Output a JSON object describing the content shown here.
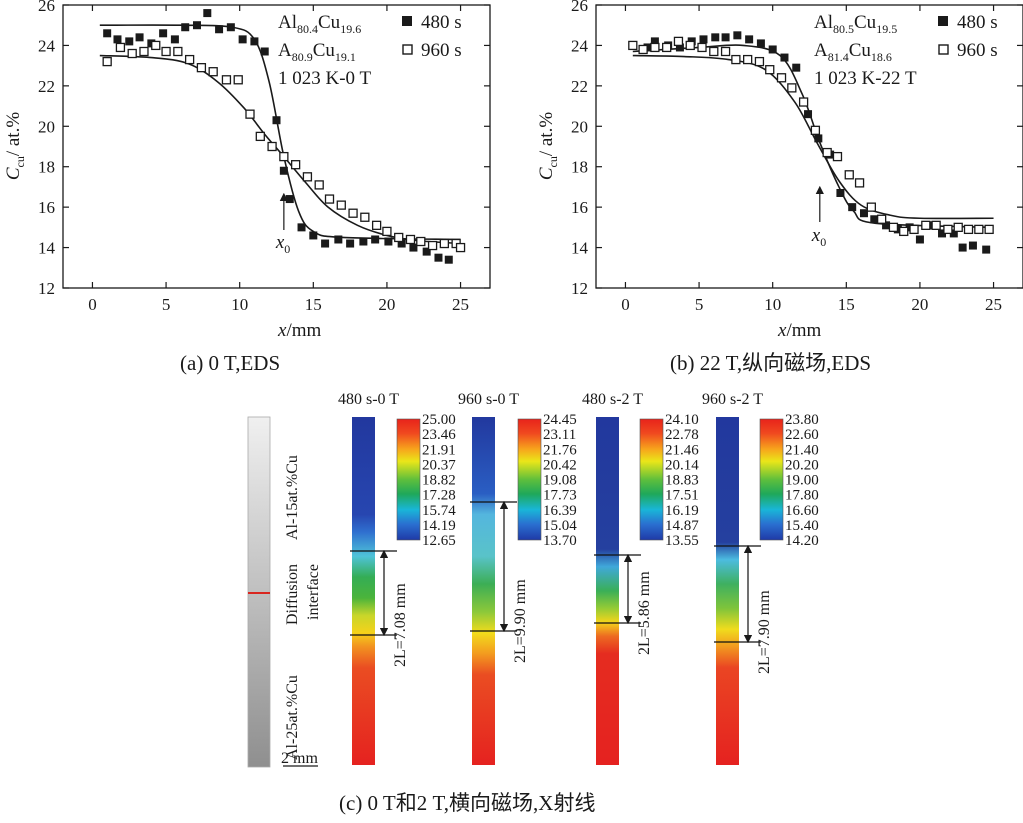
{
  "chart_data": [
    {
      "type": "scatter",
      "caption": "(a) 0 T,EDS",
      "xlabel": "x/mm",
      "ylabel": "C_cu/ at.%",
      "xlim": [
        -2,
        27
      ],
      "ylim": [
        12,
        26
      ],
      "xticks": [
        "0",
        "5",
        "10",
        "15",
        "20",
        "25"
      ],
      "yticks": [
        "12",
        "14",
        "16",
        "18",
        "20",
        "22",
        "24",
        "26"
      ],
      "legend": {
        "lines": [
          {
            "base": "Al",
            "sub1": "80.4",
            "mid": "Cu",
            "sub2": "19.6",
            "marker": "filled",
            "label": "480 s"
          },
          {
            "base": "A",
            "sub1": "80.9",
            "mid": "Cu",
            "sub2": "19.1",
            "marker": "open",
            "label": "960 s"
          }
        ],
        "condition": "1 023 K-0 T"
      },
      "annotation": {
        "base": "x",
        "sub": "0",
        "x": 13.0
      },
      "series": [
        {
          "name": "480 s",
          "marker": "filled",
          "points": [
            [
              1,
              24.6
            ],
            [
              1.7,
              24.3
            ],
            [
              2.5,
              24.2
            ],
            [
              3.2,
              24.4
            ],
            [
              4,
              24.1
            ],
            [
              4.8,
              24.6
            ],
            [
              5.6,
              24.3
            ],
            [
              6.3,
              24.9
            ],
            [
              7.1,
              25
            ],
            [
              7.8,
              25.6
            ],
            [
              8.6,
              24.8
            ],
            [
              9.4,
              24.9
            ],
            [
              10.2,
              24.3
            ],
            [
              11,
              24.2
            ],
            [
              11.7,
              23.7
            ],
            [
              12.5,
              20.3
            ],
            [
              13.0,
              17.8
            ],
            [
              13.4,
              16.4
            ],
            [
              14.2,
              15
            ],
            [
              15,
              14.6
            ],
            [
              15.8,
              14.2
            ],
            [
              16.7,
              14.4
            ],
            [
              17.5,
              14.2
            ],
            [
              18.4,
              14.3
            ],
            [
              19.2,
              14.4
            ],
            [
              20.1,
              14.3
            ],
            [
              21,
              14.2
            ],
            [
              21.8,
              14
            ],
            [
              22.7,
              13.8
            ],
            [
              23.5,
              13.5
            ],
            [
              24.2,
              13.4
            ]
          ],
          "fit": [
            [
              0.5,
              25
            ],
            [
              6,
              25
            ],
            [
              9.5,
              24.9
            ],
            [
              11,
              24.3
            ],
            [
              12,
              22.2
            ],
            [
              13,
              18.5
            ],
            [
              14,
              15.8
            ],
            [
              15,
              14.8
            ],
            [
              17,
              14.5
            ],
            [
              25,
              14.4
            ]
          ]
        },
        {
          "name": "960 s",
          "marker": "open",
          "points": [
            [
              1,
              23.2
            ],
            [
              1.9,
              23.9
            ],
            [
              2.7,
              23.6
            ],
            [
              3.5,
              23.7
            ],
            [
              4.3,
              24
            ],
            [
              5,
              23.7
            ],
            [
              5.8,
              23.7
            ],
            [
              6.6,
              23.3
            ],
            [
              7.4,
              22.9
            ],
            [
              8.2,
              22.7
            ],
            [
              9.1,
              22.3
            ],
            [
              9.9,
              22.3
            ],
            [
              10.7,
              20.6
            ],
            [
              11.4,
              19.5
            ],
            [
              12.2,
              19
            ],
            [
              13,
              18.5
            ],
            [
              13.8,
              18.1
            ],
            [
              14.6,
              17.5
            ],
            [
              15.4,
              17.1
            ],
            [
              16.1,
              16.4
            ],
            [
              16.9,
              16.1
            ],
            [
              17.7,
              15.7
            ],
            [
              18.5,
              15.5
            ],
            [
              19.3,
              15.1
            ],
            [
              20,
              14.8
            ],
            [
              20.8,
              14.5
            ],
            [
              21.6,
              14.4
            ],
            [
              22.3,
              14.3
            ],
            [
              23.1,
              14.1
            ],
            [
              23.9,
              14.2
            ],
            [
              24.7,
              14.2
            ],
            [
              25,
              14
            ]
          ],
          "fit": [
            [
              0.5,
              23.5
            ],
            [
              4,
              23.4
            ],
            [
              6.5,
              23.1
            ],
            [
              8.5,
              22.2
            ],
            [
              10.3,
              20.9
            ],
            [
              11.7,
              19.6
            ],
            [
              13,
              18.5
            ],
            [
              14.5,
              17.2
            ],
            [
              16,
              16
            ],
            [
              18,
              15.1
            ],
            [
              20,
              14.6
            ],
            [
              22,
              14.35
            ],
            [
              25,
              14.2
            ]
          ]
        }
      ]
    },
    {
      "type": "scatter",
      "caption": "(b) 22 T,纵向磁场,EDS",
      "xlabel": "x/mm",
      "ylabel": "C_cu/ at.%",
      "xlim": [
        -2,
        27
      ],
      "ylim": [
        12,
        26
      ],
      "xticks": [
        "0",
        "5",
        "10",
        "15",
        "20",
        "25"
      ],
      "yticks": [
        "12",
        "14",
        "16",
        "18",
        "20",
        "22",
        "24",
        "26"
      ],
      "legend": {
        "lines": [
          {
            "base": "Al",
            "sub1": "80.5",
            "mid": "Cu",
            "sub2": "19.5",
            "marker": "filled",
            "label": "480 s"
          },
          {
            "base": "A",
            "sub1": "81.4",
            "mid": "Cu",
            "sub2": "18.6",
            "marker": "open",
            "label": "960 s"
          }
        ],
        "condition": "1 023 K-22 T"
      },
      "annotation": {
        "base": "x",
        "sub": "0",
        "x": 13.2
      },
      "series": [
        {
          "name": "480 s",
          "marker": "filled",
          "points": [
            [
              1.5,
              23.9
            ],
            [
              2,
              24.2
            ],
            [
              2.9,
              24
            ],
            [
              3.7,
              23.9
            ],
            [
              4.5,
              24.2
            ],
            [
              5.3,
              24.3
            ],
            [
              6.1,
              24.4
            ],
            [
              6.8,
              24.4
            ],
            [
              7.6,
              24.5
            ],
            [
              8.4,
              24.3
            ],
            [
              9.2,
              24.1
            ],
            [
              10,
              23.8
            ],
            [
              10.8,
              23.4
            ],
            [
              11.6,
              22.9
            ],
            [
              12.4,
              20.6
            ],
            [
              13.1,
              19.4
            ],
            [
              13.9,
              18.6
            ],
            [
              14.6,
              16.7
            ],
            [
              15.4,
              16
            ],
            [
              16.2,
              15.7
            ],
            [
              16.9,
              15.4
            ],
            [
              17.7,
              15.1
            ],
            [
              18.5,
              14.9
            ],
            [
              19.3,
              15
            ],
            [
              20,
              14.4
            ],
            [
              20.8,
              15.1
            ],
            [
              21.5,
              14.7
            ],
            [
              22.3,
              14.7
            ],
            [
              22.9,
              14
            ],
            [
              23.6,
              14.1
            ],
            [
              24.5,
              13.9
            ]
          ],
          "fit": [
            [
              0.5,
              23.7
            ],
            [
              5,
              23.9
            ],
            [
              8,
              24
            ],
            [
              10.5,
              23.5
            ],
            [
              12,
              21.6
            ],
            [
              13.2,
              19.2
            ],
            [
              14.5,
              17
            ],
            [
              15.5,
              15.8
            ],
            [
              17,
              15.2
            ],
            [
              25,
              15
            ]
          ]
        },
        {
          "name": "960 s",
          "marker": "open",
          "points": [
            [
              0.5,
              24
            ],
            [
              1.2,
              23.8
            ],
            [
              2,
              23.9
            ],
            [
              2.8,
              23.9
            ],
            [
              3.6,
              24.2
            ],
            [
              4.4,
              24
            ],
            [
              5.2,
              23.9
            ],
            [
              6,
              23.7
            ],
            [
              6.8,
              23.7
            ],
            [
              7.5,
              23.3
            ],
            [
              8.3,
              23.3
            ],
            [
              9.1,
              23.2
            ],
            [
              9.8,
              22.8
            ],
            [
              10.6,
              22.4
            ],
            [
              11.3,
              21.9
            ],
            [
              12.1,
              21.2
            ],
            [
              12.9,
              19.8
            ],
            [
              13.7,
              18.7
            ],
            [
              14.4,
              18.5
            ],
            [
              15.2,
              17.6
            ],
            [
              15.9,
              17.2
            ],
            [
              16.7,
              16
            ],
            [
              17.4,
              15.4
            ],
            [
              18.2,
              15
            ],
            [
              18.9,
              14.8
            ],
            [
              19.6,
              14.9
            ],
            [
              20.4,
              15.1
            ],
            [
              21.1,
              15.1
            ],
            [
              21.9,
              14.9
            ],
            [
              22.6,
              15
            ],
            [
              23.3,
              14.9
            ],
            [
              24,
              14.9
            ],
            [
              24.7,
              14.9
            ]
          ],
          "fit": [
            [
              0.5,
              23.5
            ],
            [
              4,
              23.45
            ],
            [
              7,
              23.3
            ],
            [
              9.5,
              22.8
            ],
            [
              11.5,
              21.2
            ],
            [
              13,
              19.2
            ],
            [
              14.5,
              17.3
            ],
            [
              16,
              16.1
            ],
            [
              18,
              15.6
            ],
            [
              20,
              15.45
            ],
            [
              25,
              15.45
            ]
          ]
        }
      ]
    }
  ],
  "xray": {
    "caption": "(c) 0 T和2 T,横向磁场,X射线",
    "schematic": {
      "top_label": "Al-15at.%Cu",
      "mid_label_1": "Diffusion",
      "mid_label_2": "interface",
      "bottom_label": "Al-25at.%Cu",
      "scale_label": "2 mm"
    },
    "panels": [
      {
        "title": "480 s-0 T",
        "length": "2L=7.08 mm",
        "colorbar": [
          "25.00",
          "23.46",
          "21.91",
          "20.37",
          "18.82",
          "17.28",
          "15.74",
          "14.19",
          "12.65"
        ]
      },
      {
        "title": "960 s-0 T",
        "length": "2L=9.90 mm",
        "colorbar": [
          "24.45",
          "23.11",
          "21.76",
          "20.42",
          "19.08",
          "17.73",
          "16.39",
          "15.04",
          "13.70"
        ]
      },
      {
        "title": "480 s-2 T",
        "length": "2L=5.86 mm",
        "colorbar": [
          "24.10",
          "22.78",
          "21.46",
          "20.14",
          "18.83",
          "17.51",
          "16.19",
          "14.87",
          "13.55"
        ]
      },
      {
        "title": "960 s-2 T",
        "length": "2L=7.90 mm",
        "colorbar": [
          "23.80",
          "22.60",
          "21.40",
          "20.20",
          "19.00",
          "17.80",
          "16.60",
          "15.40",
          "14.20"
        ]
      }
    ]
  }
}
